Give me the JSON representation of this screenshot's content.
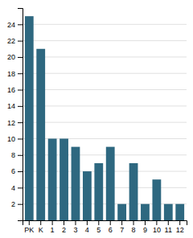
{
  "chart_data": {
    "type": "bar",
    "categories": [
      "PK",
      "K",
      "1",
      "2",
      "3",
      "4",
      "5",
      "6",
      "7",
      "8",
      "9",
      "10",
      "11",
      "12"
    ],
    "values": [
      25,
      21,
      10,
      10,
      9,
      6,
      7,
      9,
      2,
      7,
      2,
      5,
      2,
      2
    ],
    "color": "#2e6880",
    "ylim": [
      0,
      26
    ],
    "yticks": [
      2,
      4,
      6,
      8,
      10,
      12,
      14,
      16,
      18,
      20,
      22,
      24
    ],
    "grid": true
  }
}
